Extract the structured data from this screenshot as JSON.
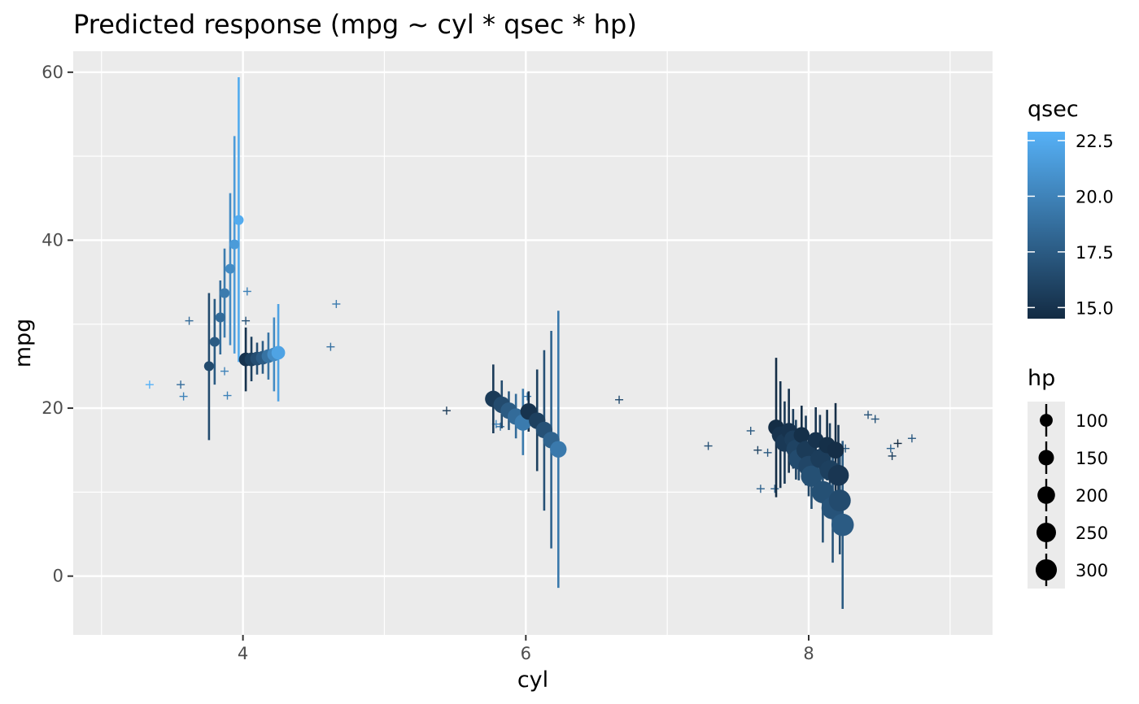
{
  "chart_data": {
    "type": "scatter",
    "title": "Predicted response (mpg ~ cyl * qsec * hp)",
    "xlabel": "cyl",
    "ylabel": "mpg",
    "xlim": [
      2.8,
      9.3
    ],
    "ylim": [
      -7,
      62.5
    ],
    "x_ticks": [
      4,
      6,
      8
    ],
    "y_ticks": [
      0,
      20,
      40,
      60
    ],
    "grid": true,
    "colorbar": {
      "title": "qsec",
      "min": 14.5,
      "max": 22.9,
      "ticks": [
        15.0,
        17.5,
        20.0,
        22.5
      ],
      "low_color": "#132B43",
      "high_color": "#56B1F7"
    },
    "size_legend": {
      "title": "hp",
      "breaks": [
        100,
        150,
        200,
        250,
        300
      ]
    },
    "observed": [
      {
        "x": 3.34,
        "y": 22.8,
        "qsec": 22.9
      },
      {
        "x": 3.56,
        "y": 22.8,
        "qsec": 18.6
      },
      {
        "x": 3.58,
        "y": 21.4,
        "qsec": 20.0
      },
      {
        "x": 3.62,
        "y": 30.4,
        "qsec": 18.5
      },
      {
        "x": 3.87,
        "y": 24.4,
        "qsec": 20.0
      },
      {
        "x": 3.89,
        "y": 21.5,
        "qsec": 20.0
      },
      {
        "x": 4.02,
        "y": 30.4,
        "qsec": 16.9
      },
      {
        "x": 4.03,
        "y": 33.9,
        "qsec": 19.9
      },
      {
        "x": 4.62,
        "y": 27.3,
        "qsec": 18.9
      },
      {
        "x": 4.66,
        "y": 32.4,
        "qsec": 19.5
      },
      {
        "x": 5.44,
        "y": 19.7,
        "qsec": 15.5
      },
      {
        "x": 5.79,
        "y": 18.1,
        "qsec": 20.2
      },
      {
        "x": 5.82,
        "y": 17.8,
        "qsec": 18.9
      },
      {
        "x": 6.01,
        "y": 21.4,
        "qsec": 19.4
      },
      {
        "x": 6.66,
        "y": 21.0,
        "qsec": 16.5
      },
      {
        "x": 7.29,
        "y": 15.5,
        "qsec": 16.9
      },
      {
        "x": 7.59,
        "y": 17.3,
        "qsec": 17.4
      },
      {
        "x": 7.64,
        "y": 15.0,
        "qsec": 16.0
      },
      {
        "x": 7.66,
        "y": 10.4,
        "qsec": 18.0
      },
      {
        "x": 7.71,
        "y": 14.7,
        "qsec": 17.4
      },
      {
        "x": 7.76,
        "y": 10.4,
        "qsec": 17.8
      },
      {
        "x": 8.26,
        "y": 15.2,
        "qsec": 17.3
      },
      {
        "x": 8.42,
        "y": 19.2,
        "qsec": 17.0
      },
      {
        "x": 8.47,
        "y": 18.7,
        "qsec": 17.0
      },
      {
        "x": 8.58,
        "y": 15.2,
        "qsec": 18.0
      },
      {
        "x": 8.59,
        "y": 14.3,
        "qsec": 15.8
      },
      {
        "x": 8.63,
        "y": 15.8,
        "qsec": 14.5
      },
      {
        "x": 8.73,
        "y": 16.4,
        "qsec": 17.4
      }
    ],
    "predicted": [
      {
        "x": 3.76,
        "y": 25.0,
        "ymin": 16.2,
        "ymax": 33.7,
        "qsec": 16.5,
        "hp": 52
      },
      {
        "x": 3.8,
        "y": 27.9,
        "ymin": 22.8,
        "ymax": 33.0,
        "qsec": 17.5,
        "hp": 52
      },
      {
        "x": 3.84,
        "y": 30.8,
        "ymin": 26.4,
        "ymax": 35.2,
        "qsec": 18.5,
        "hp": 52
      },
      {
        "x": 3.87,
        "y": 33.7,
        "ymin": 28.4,
        "ymax": 39.0,
        "qsec": 19.5,
        "hp": 52
      },
      {
        "x": 3.91,
        "y": 36.6,
        "ymin": 27.5,
        "ymax": 45.6,
        "qsec": 20.5,
        "hp": 52
      },
      {
        "x": 3.94,
        "y": 39.5,
        "ymin": 26.5,
        "ymax": 52.4,
        "qsec": 21.5,
        "hp": 52
      },
      {
        "x": 3.97,
        "y": 42.4,
        "ymin": 25.5,
        "ymax": 59.4,
        "qsec": 22.5,
        "hp": 52
      },
      {
        "x": 4.02,
        "y": 25.8,
        "ymin": 22.0,
        "ymax": 29.6,
        "qsec": 15.0,
        "hp": 113
      },
      {
        "x": 4.06,
        "y": 25.8,
        "ymin": 23.2,
        "ymax": 28.5,
        "qsec": 15.8,
        "hp": 113
      },
      {
        "x": 4.1,
        "y": 25.9,
        "ymin": 24.0,
        "ymax": 27.8,
        "qsec": 16.7,
        "hp": 113
      },
      {
        "x": 4.14,
        "y": 26.0,
        "ymin": 24.1,
        "ymax": 28.0,
        "qsec": 17.6,
        "hp": 113
      },
      {
        "x": 4.18,
        "y": 26.2,
        "ymin": 23.4,
        "ymax": 29.0,
        "qsec": 19.0,
        "hp": 113
      },
      {
        "x": 4.22,
        "y": 26.4,
        "ymin": 22.0,
        "ymax": 30.8,
        "qsec": 20.5,
        "hp": 113
      },
      {
        "x": 4.25,
        "y": 26.6,
        "ymin": 20.8,
        "ymax": 32.4,
        "qsec": 22.0,
        "hp": 113
      },
      {
        "x": 5.77,
        "y": 21.1,
        "ymin": 17.0,
        "ymax": 25.2,
        "qsec": 15.5,
        "hp": 175
      },
      {
        "x": 5.83,
        "y": 20.4,
        "ymin": 17.6,
        "ymax": 23.3,
        "qsec": 16.5,
        "hp": 175
      },
      {
        "x": 5.88,
        "y": 19.7,
        "ymin": 17.4,
        "ymax": 22.0,
        "qsec": 17.5,
        "hp": 175
      },
      {
        "x": 5.93,
        "y": 19.0,
        "ymin": 16.4,
        "ymax": 21.7,
        "qsec": 18.5,
        "hp": 175
      },
      {
        "x": 5.98,
        "y": 18.3,
        "ymin": 14.4,
        "ymax": 22.3,
        "qsec": 19.5,
        "hp": 175
      },
      {
        "x": 6.02,
        "y": 19.6,
        "ymin": 17.2,
        "ymax": 22.0,
        "qsec": 15.0,
        "hp": 175
      },
      {
        "x": 6.08,
        "y": 18.5,
        "ymin": 12.5,
        "ymax": 24.6,
        "qsec": 15.8,
        "hp": 175
      },
      {
        "x": 6.13,
        "y": 17.4,
        "ymin": 7.8,
        "ymax": 26.9,
        "qsec": 16.9,
        "hp": 175
      },
      {
        "x": 6.18,
        "y": 16.2,
        "ymin": 3.3,
        "ymax": 29.2,
        "qsec": 18.0,
        "hp": 175
      },
      {
        "x": 6.23,
        "y": 15.1,
        "ymin": -1.4,
        "ymax": 31.6,
        "qsec": 19.4,
        "hp": 175
      },
      {
        "x": 7.77,
        "y": 17.7,
        "ymin": 9.4,
        "ymax": 26.0,
        "qsec": 14.6,
        "hp": 160
      },
      {
        "x": 7.8,
        "y": 16.8,
        "ymin": 10.5,
        "ymax": 23.2,
        "qsec": 15.0,
        "hp": 190
      },
      {
        "x": 7.83,
        "y": 15.9,
        "ymin": 11.0,
        "ymax": 20.8,
        "qsec": 15.4,
        "hp": 220
      },
      {
        "x": 7.86,
        "y": 17.3,
        "ymin": 12.3,
        "ymax": 22.3,
        "qsec": 15.0,
        "hp": 160
      },
      {
        "x": 7.89,
        "y": 16.3,
        "ymin": 12.8,
        "ymax": 19.9,
        "qsec": 15.6,
        "hp": 200
      },
      {
        "x": 7.91,
        "y": 15.1,
        "ymin": 11.5,
        "ymax": 18.6,
        "qsec": 16.0,
        "hp": 240
      },
      {
        "x": 7.93,
        "y": 13.9,
        "ymin": 11.4,
        "ymax": 16.4,
        "qsec": 16.5,
        "hp": 270
      },
      {
        "x": 7.95,
        "y": 16.8,
        "ymin": 13.3,
        "ymax": 20.3,
        "qsec": 14.8,
        "hp": 160
      },
      {
        "x": 7.98,
        "y": 15.0,
        "ymin": 10.8,
        "ymax": 19.1,
        "qsec": 15.5,
        "hp": 230
      },
      {
        "x": 8.0,
        "y": 13.1,
        "ymin": 9.5,
        "ymax": 16.7,
        "qsec": 16.2,
        "hp": 280
      },
      {
        "x": 8.02,
        "y": 11.9,
        "ymin": 8.0,
        "ymax": 15.9,
        "qsec": 16.8,
        "hp": 300
      },
      {
        "x": 8.05,
        "y": 16.2,
        "ymin": 12.5,
        "ymax": 20.1,
        "qsec": 15.0,
        "hp": 160
      },
      {
        "x": 8.08,
        "y": 14.0,
        "ymin": 8.8,
        "ymax": 19.2,
        "qsec": 15.6,
        "hp": 240
      },
      {
        "x": 8.1,
        "y": 10.0,
        "ymin": 4.0,
        "ymax": 16.0,
        "qsec": 16.8,
        "hp": 330
      },
      {
        "x": 8.13,
        "y": 15.6,
        "ymin": 11.4,
        "ymax": 19.8,
        "qsec": 14.8,
        "hp": 170
      },
      {
        "x": 8.15,
        "y": 12.6,
        "ymin": 6.9,
        "ymax": 18.2,
        "qsec": 15.8,
        "hp": 270
      },
      {
        "x": 8.17,
        "y": 8.1,
        "ymin": 1.6,
        "ymax": 14.6,
        "qsec": 17.0,
        "hp": 340
      },
      {
        "x": 8.19,
        "y": 15.0,
        "ymin": 9.4,
        "ymax": 20.6,
        "qsec": 14.7,
        "hp": 180
      },
      {
        "x": 8.21,
        "y": 12.0,
        "ymin": 6.0,
        "ymax": 18.0,
        "qsec": 15.2,
        "hp": 290
      },
      {
        "x": 8.22,
        "y": 9.0,
        "ymin": 2.6,
        "ymax": 15.4,
        "qsec": 16.5,
        "hp": 320
      },
      {
        "x": 8.24,
        "y": 6.1,
        "ymin": -3.9,
        "ymax": 16.1,
        "qsec": 17.5,
        "hp": 335
      }
    ]
  }
}
